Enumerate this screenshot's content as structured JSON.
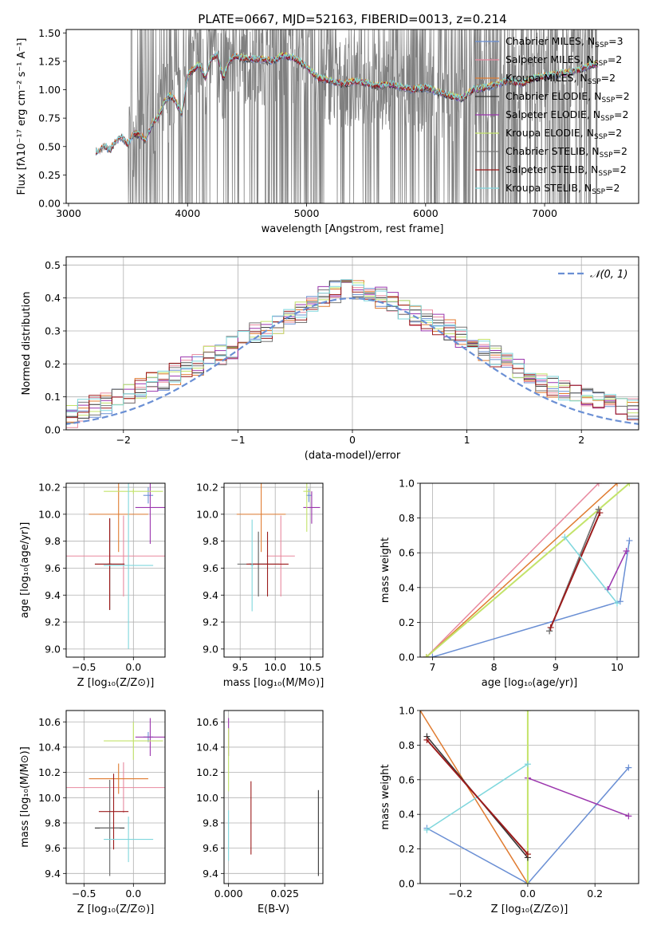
{
  "figure_title": "PLATE=0667, MJD=52163, FIBERID=0013, z=0.214",
  "colors": {
    "Chabrier MILES": "#6a8fd4",
    "Salpeter MILES": "#e8889e",
    "Kroupa MILES": "#e07b30",
    "Chabrier ELODIE": "#333333",
    "Salpeter ELODIE": "#9b35ad",
    "Kroupa ELODIE": "#c3e36a",
    "Chabrier STELIB": "#777777",
    "Salpeter STELIB": "#9b1b1b",
    "Kroupa STELIB": "#7fd7dd",
    "data": "#808080",
    "gauss": "#6a8fd4"
  },
  "chart_data": [
    {
      "id": "spectrum",
      "type": "line",
      "title": "PLATE=0667, MJD=52163, FIBERID=0013, z=0.214",
      "xlabel": "wavelength [Angstrom, rest frame]",
      "ylabel": "Flux [fλ10⁻¹⁷ erg cm⁻² s⁻¹ A⁻¹]",
      "xlim": [
        2980,
        7790
      ],
      "ylim": [
        0,
        1.53
      ],
      "xticks": [
        3000,
        4000,
        5000,
        6000,
        7000
      ],
      "xtick_labels": [
        "3000",
        "4000",
        "5000",
        "6000",
        "7000"
      ],
      "yticks": [
        0.0,
        0.25,
        0.5,
        0.75,
        1.0,
        1.25,
        1.5
      ],
      "ytick_labels": [
        "0.00",
        "0.25",
        "0.50",
        "0.75",
        "1.00",
        "1.25",
        "1.50"
      ],
      "legend_position": "top-right",
      "legend": [
        {
          "name": "Chabrier MILES",
          "text": "Chabrier MILES, N",
          "sub": "SSP",
          "tail": "=3"
        },
        {
          "name": "Salpeter MILES",
          "text": "Salpeter MILES, N",
          "sub": "SSP",
          "tail": "=2"
        },
        {
          "name": "Kroupa MILES",
          "text": "Kroupa MILES, N",
          "sub": "SSP",
          "tail": "=2"
        },
        {
          "name": "Chabrier ELODIE",
          "text": "Chabrier ELODIE, N",
          "sub": "SSP",
          "tail": "=2"
        },
        {
          "name": "Salpeter ELODIE",
          "text": "Salpeter ELODIE, N",
          "sub": "SSP",
          "tail": "=2"
        },
        {
          "name": "Kroupa ELODIE",
          "text": "Kroupa ELODIE, N",
          "sub": "SSP",
          "tail": "=2"
        },
        {
          "name": "Chabrier STELIB",
          "text": "Chabrier STELIB, N",
          "sub": "SSP",
          "tail": "=2"
        },
        {
          "name": "Salpeter STELIB",
          "text": "Salpeter STELIB, N",
          "sub": "SSP",
          "tail": "=2"
        },
        {
          "name": "Kroupa STELIB",
          "text": "Kroupa STELIB, N",
          "sub": "SSP",
          "tail": "=2"
        }
      ],
      "model_continuum": {
        "x": [
          3200,
          3250,
          3300,
          3350,
          3400,
          3450,
          3500,
          3550,
          3600,
          3650,
          3700,
          3750,
          3800,
          3850,
          3900,
          3950,
          4000,
          4050,
          4100,
          4150,
          4200,
          4250,
          4300,
          4350,
          4400,
          4450,
          4500,
          4600,
          4700,
          4800,
          4900,
          5000,
          5100,
          5200,
          5300,
          5400,
          5500,
          5600,
          5700,
          5800,
          5900,
          6000,
          6100,
          6200,
          6300,
          6400,
          6500,
          6600,
          6700,
          6800,
          6900,
          7000,
          7100,
          7200,
          7300,
          7400
        ],
        "y": [
          0.48,
          0.45,
          0.5,
          0.47,
          0.55,
          0.58,
          0.52,
          0.62,
          0.6,
          0.55,
          0.7,
          0.75,
          0.88,
          0.95,
          0.9,
          0.78,
          1.12,
          1.18,
          1.22,
          1.1,
          1.28,
          1.3,
          1.1,
          1.25,
          1.3,
          1.28,
          1.27,
          1.27,
          1.25,
          1.3,
          1.28,
          1.2,
          1.1,
          1.08,
          1.05,
          1.07,
          1.06,
          1.03,
          1.05,
          1.02,
          1.0,
          1.02,
          0.98,
          0.95,
          0.92,
          1.0,
          1.02,
          1.05,
          1.08,
          1.05,
          1.1,
          1.12,
          1.14,
          1.15,
          1.18,
          1.22
        ]
      },
      "data_range": [
        3230,
        7450
      ]
    },
    {
      "id": "residuals",
      "type": "line",
      "xlabel": "(data-model)/error",
      "ylabel": "Normed distribution",
      "xlim": [
        -2.5,
        2.5
      ],
      "ylim": [
        0,
        0.525
      ],
      "xticks": [
        -2,
        -1,
        0,
        1,
        2
      ],
      "xtick_labels": [
        "−2",
        "−1",
        "0",
        "1",
        "2"
      ],
      "yticks": [
        0.0,
        0.1,
        0.2,
        0.3,
        0.4,
        0.5
      ],
      "ytick_labels": [
        "0.0",
        "0.1",
        "0.2",
        "0.3",
        "0.4",
        "0.5"
      ],
      "legend_position": "top-right",
      "legend": [
        {
          "name": "N(0,1)",
          "text": "𝒩(0, 1)"
        }
      ],
      "histogram_bin_width": 0.1,
      "histogram_base": [
        0.01,
        0.01,
        0.02,
        0.02,
        0.03,
        0.04,
        0.06,
        0.07,
        0.08,
        0.09,
        0.11,
        0.13,
        0.14,
        0.15,
        0.17,
        0.19,
        0.2,
        0.22,
        0.23,
        0.25,
        0.27,
        0.29,
        0.3,
        0.32,
        0.34,
        0.36,
        0.38,
        0.4,
        0.42,
        0.43,
        0.43,
        0.42,
        0.4,
        0.39,
        0.37,
        0.35,
        0.33,
        0.32,
        0.3,
        0.28,
        0.26,
        0.24,
        0.22,
        0.2,
        0.18,
        0.16,
        0.14,
        0.13,
        0.12,
        0.11,
        0.1,
        0.09,
        0.08,
        0.07,
        0.06,
        0.05,
        0.05,
        0.04,
        0.04,
        0.03
      ]
    },
    {
      "id": "age-vs-z",
      "type": "scatter",
      "xlabel": "Z [log₁₀(Z/Z⊙)]",
      "ylabel": "age  [log₁₀(age/yr)]",
      "xlim": [
        -0.68,
        0.32
      ],
      "ylim": [
        8.94,
        10.23
      ],
      "xticks": [
        -0.5,
        0.0
      ],
      "xtick_labels": [
        "−0.5",
        "0.0"
      ],
      "yticks": [
        9.0,
        9.2,
        9.4,
        9.6,
        9.8,
        10.0,
        10.2
      ],
      "ytick_labels": [
        "9.0",
        "9.2",
        "9.4",
        "9.6",
        "9.8",
        "10.0",
        "10.2"
      ],
      "points": [
        {
          "name": "Chabrier MILES",
          "x": 0.15,
          "y": 10.14,
          "xerr": 0.05,
          "yerr": 0.06
        },
        {
          "name": "Salpeter MILES",
          "x": -0.1,
          "y": 9.69,
          "xerr": 0.58,
          "yerr": 0.3
        },
        {
          "name": "Kroupa MILES",
          "x": -0.15,
          "y": 10.0,
          "xerr": 0.3,
          "yerr": 0.28
        },
        {
          "name": "Chabrier ELODIE",
          "x": -0.24,
          "y": 9.63,
          "xerr": 0.02,
          "yerr": 0.34
        },
        {
          "name": "Salpeter ELODIE",
          "x": 0.17,
          "y": 10.05,
          "xerr": 0.15,
          "yerr": 0.27
        },
        {
          "name": "Kroupa ELODIE",
          "x": 0.0,
          "y": 10.17,
          "xerr": 0.3,
          "yerr": 0.02
        },
        {
          "name": "Chabrier STELIB",
          "x": -0.24,
          "y": 9.63,
          "xerr": 0.15,
          "yerr": 0.34
        },
        {
          "name": "Salpeter STELIB",
          "x": -0.24,
          "y": 9.63,
          "xerr": 0.15,
          "yerr": 0.34
        },
        {
          "name": "Kroupa STELIB",
          "x": -0.05,
          "y": 9.62,
          "xerr": 0.25,
          "yerr": 0.62
        }
      ]
    },
    {
      "id": "age-vs-mass",
      "type": "scatter",
      "xlabel": "mass [log₁₀(M/M⊙)]",
      "ylabel": "",
      "xlim": [
        9.27,
        10.68
      ],
      "ylim": [
        8.94,
        10.23
      ],
      "xticks": [
        9.5,
        10.0,
        10.5
      ],
      "xtick_labels": [
        "9.5",
        "10.0",
        "10.5"
      ],
      "yticks": [
        9.0,
        9.2,
        9.4,
        9.6,
        9.8,
        10.0,
        10.2
      ],
      "ytick_labels": [
        "9.0",
        "9.2",
        "9.4",
        "9.6",
        "9.8",
        "10.0",
        "10.2"
      ],
      "points": [
        {
          "name": "Chabrier MILES",
          "x": 10.48,
          "y": 10.14,
          "xerr": 0.04,
          "yerr": 0.05
        },
        {
          "name": "Salpeter MILES",
          "x": 10.08,
          "y": 9.69,
          "xerr": 0.2,
          "yerr": 0.3
        },
        {
          "name": "Kroupa MILES",
          "x": 9.8,
          "y": 10.0,
          "xerr": 0.35,
          "yerr": 0.28
        },
        {
          "name": "Chabrier ELODIE",
          "x": 9.76,
          "y": 9.63,
          "xerr": 0.14,
          "yerr": 0.24
        },
        {
          "name": "Salpeter ELODIE",
          "x": 10.52,
          "y": 10.05,
          "xerr": 0.12,
          "yerr": 0.12
        },
        {
          "name": "Kroupa ELODIE",
          "x": 10.45,
          "y": 10.17,
          "xerr": 0.05,
          "yerr": 0.3
        },
        {
          "name": "Chabrier STELIB",
          "x": 9.76,
          "y": 9.63,
          "xerr": 0.3,
          "yerr": 0.24
        },
        {
          "name": "Salpeter STELIB",
          "x": 9.89,
          "y": 9.63,
          "xerr": 0.3,
          "yerr": 0.24
        },
        {
          "name": "Kroupa STELIB",
          "x": 9.67,
          "y": 9.62,
          "xerr": 0.02,
          "yerr": 0.34
        }
      ]
    },
    {
      "id": "weight-vs-age",
      "type": "line",
      "xlabel": "age  [log₁₀(age/yr)]",
      "ylabel": "mass weight",
      "xlim": [
        6.8,
        10.35
      ],
      "ylim": [
        0,
        1.0
      ],
      "xticks": [
        7,
        8,
        9,
        10
      ],
      "xtick_labels": [
        "7",
        "8",
        "9",
        "10"
      ],
      "yticks": [
        0.0,
        0.2,
        0.4,
        0.6,
        0.8,
        1.0
      ],
      "ytick_labels": [
        "0.0",
        "0.2",
        "0.4",
        "0.6",
        "0.8",
        "1.0"
      ],
      "series": [
        {
          "name": "Chabrier MILES",
          "x": [
            7.0,
            10.05,
            10.2
          ],
          "y": [
            0.0,
            0.32,
            0.67
          ]
        },
        {
          "name": "Salpeter MILES",
          "x": [
            6.9,
            9.7
          ],
          "y": [
            0.0,
            1.0
          ]
        },
        {
          "name": "Kroupa MILES",
          "x": [
            6.9,
            10.0
          ],
          "y": [
            0.0,
            1.0
          ]
        },
        {
          "name": "Chabrier ELODIE",
          "x": [
            8.9,
            9.7
          ],
          "y": [
            0.15,
            0.85
          ]
        },
        {
          "name": "Salpeter ELODIE",
          "x": [
            9.85,
            10.15
          ],
          "y": [
            0.39,
            0.61
          ]
        },
        {
          "name": "Kroupa ELODIE",
          "x": [
            6.9,
            10.2
          ],
          "y": [
            0.0,
            1.0
          ]
        },
        {
          "name": "Chabrier STELIB",
          "x": [
            8.9,
            9.7
          ],
          "y": [
            0.15,
            0.85
          ]
        },
        {
          "name": "Salpeter STELIB",
          "x": [
            8.92,
            9.72
          ],
          "y": [
            0.17,
            0.83
          ]
        },
        {
          "name": "Kroupa STELIB",
          "x": [
            9.15,
            10.0
          ],
          "y": [
            0.69,
            0.31
          ]
        }
      ]
    },
    {
      "id": "mass-vs-z",
      "type": "scatter",
      "xlabel": "Z [log₁₀(Z/Z⊙)]",
      "ylabel": "mass [log₁₀(M/M⊙)]",
      "xlim": [
        -0.68,
        0.32
      ],
      "ylim": [
        9.32,
        10.69
      ],
      "xticks": [
        -0.5,
        0.0
      ],
      "xtick_labels": [
        "−0.5",
        "0.0"
      ],
      "yticks": [
        9.4,
        9.6,
        9.8,
        10.0,
        10.2,
        10.4,
        10.6
      ],
      "ytick_labels": [
        "9.4",
        "9.6",
        "9.8",
        "10.0",
        "10.2",
        "10.4",
        "10.6"
      ],
      "points": [
        {
          "name": "Chabrier MILES",
          "x": 0.15,
          "y": 10.48,
          "xerr": 0.05,
          "yerr": 0.04
        },
        {
          "name": "Salpeter MILES",
          "x": -0.1,
          "y": 10.08,
          "xerr": 0.58,
          "yerr": 0.2
        },
        {
          "name": "Kroupa MILES",
          "x": -0.15,
          "y": 10.15,
          "xerr": 0.3,
          "yerr": 0.12
        },
        {
          "name": "Chabrier ELODIE",
          "x": -0.24,
          "y": 9.76,
          "xerr": 0.15,
          "yerr": 0.38
        },
        {
          "name": "Salpeter ELODIE",
          "x": 0.17,
          "y": 10.48,
          "xerr": 0.15,
          "yerr": 0.15
        },
        {
          "name": "Kroupa ELODIE",
          "x": 0.0,
          "y": 10.45,
          "xerr": 0.3,
          "yerr": 0.15
        },
        {
          "name": "Chabrier STELIB",
          "x": -0.24,
          "y": 9.76,
          "xerr": 0.1,
          "yerr": 0.38
        },
        {
          "name": "Salpeter STELIB",
          "x": -0.2,
          "y": 9.89,
          "xerr": 0.15,
          "yerr": 0.3
        },
        {
          "name": "Kroupa STELIB",
          "x": -0.05,
          "y": 9.67,
          "xerr": 0.25,
          "yerr": 0.18
        }
      ]
    },
    {
      "id": "mass-vs-ebv",
      "type": "scatter",
      "xlabel": "E(B-V)",
      "ylabel": "",
      "xlim": [
        -0.002,
        0.042
      ],
      "ylim": [
        9.32,
        10.69
      ],
      "xticks": [
        0.0,
        0.025
      ],
      "xtick_labels": [
        "0.000",
        "0.025"
      ],
      "yticks": [
        9.4,
        9.6,
        9.8,
        10.0,
        10.2,
        10.4,
        10.6
      ],
      "ytick_labels": [
        "9.4",
        "9.6",
        "9.8",
        "10.0",
        "10.2",
        "10.4",
        "10.6"
      ],
      "points": [
        {
          "name": "Salpeter ELODIE",
          "x": 0.0,
          "y": 10.48,
          "xerr": 0,
          "yerr": 0.15
        },
        {
          "name": "Kroupa ELODIE",
          "x": 0.0,
          "y": 10.3,
          "xerr": 0,
          "yerr": 0.25
        },
        {
          "name": "Kroupa STELIB",
          "x": 0.0,
          "y": 9.7,
          "xerr": 0,
          "yerr": 0.2
        },
        {
          "name": "Salpeter STELIB",
          "x": 0.01,
          "y": 9.84,
          "xerr": 0,
          "yerr": 0.29
        },
        {
          "name": "Chabrier ELODIE",
          "x": 0.04,
          "y": 9.72,
          "xerr": 0,
          "yerr": 0.34
        }
      ]
    },
    {
      "id": "weight-vs-z",
      "type": "line",
      "xlabel": "Z [log₁₀(Z/Z⊙)]",
      "ylabel": "mass weight",
      "xlim": [
        -0.32,
        0.33
      ],
      "ylim": [
        0,
        1.0
      ],
      "xticks": [
        -0.2,
        0.0,
        0.2
      ],
      "xtick_labels": [
        "−0.2",
        "0.0",
        "0.2"
      ],
      "yticks": [
        0.0,
        0.2,
        0.4,
        0.6,
        0.8,
        1.0
      ],
      "ytick_labels": [
        "0.0",
        "0.2",
        "0.4",
        "0.6",
        "0.8",
        "1.0"
      ],
      "series": [
        {
          "name": "Chabrier MILES",
          "x": [
            -0.3,
            0.0,
            0.3
          ],
          "y": [
            0.32,
            0.0,
            0.67
          ]
        },
        {
          "name": "Kroupa MILES",
          "x": [
            -0.32,
            0.0
          ],
          "y": [
            1.0,
            0.0
          ]
        },
        {
          "name": "Salpeter ELODIE",
          "x": [
            0.0,
            0.3
          ],
          "y": [
            0.61,
            0.39
          ]
        },
        {
          "name": "Kroupa ELODIE",
          "x": [
            0.0,
            0.0
          ],
          "y": [
            1.0,
            0.0
          ]
        },
        {
          "name": "Kroupa STELIB",
          "x": [
            -0.3,
            0.0
          ],
          "y": [
            0.31,
            0.69
          ]
        },
        {
          "name": "Chabrier ELODIE",
          "x": [
            -0.3,
            0.0
          ],
          "y": [
            0.85,
            0.15
          ]
        },
        {
          "name": "Salpeter STELIB",
          "x": [
            -0.3,
            0.0
          ],
          "y": [
            0.83,
            0.17
          ]
        }
      ]
    }
  ]
}
